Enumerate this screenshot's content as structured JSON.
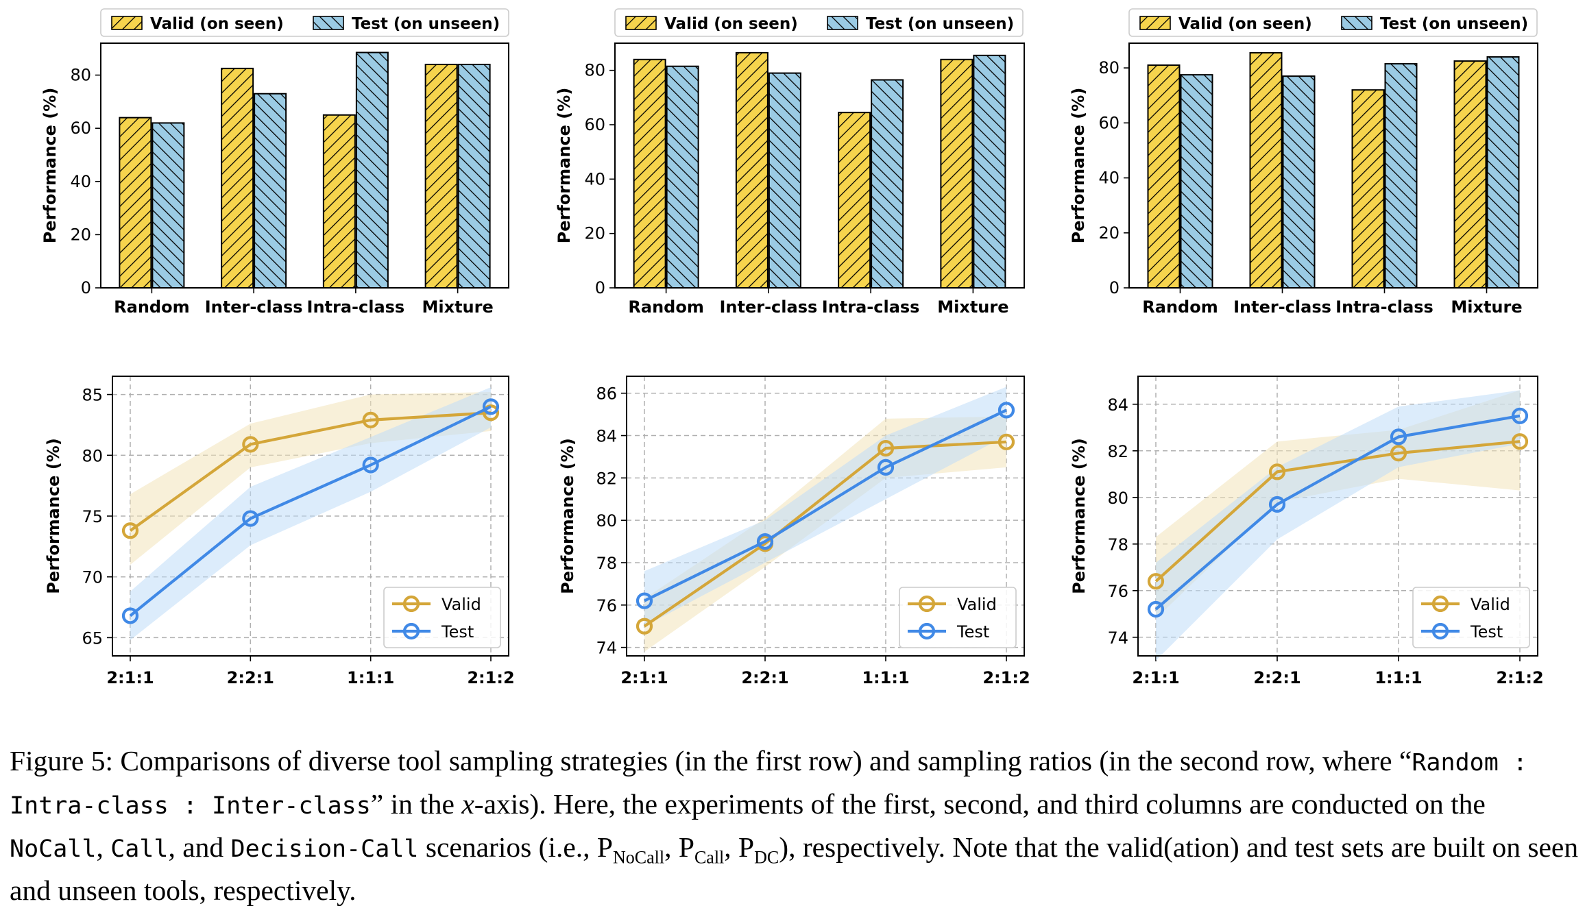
{
  "chart_data": [
    {
      "type": "bar",
      "ylabel": "Performance (%)",
      "ylim": [
        0,
        92
      ],
      "yticks": [
        "0",
        "20",
        "40",
        "60",
        "80"
      ],
      "categories": [
        "Random",
        "Inter-class",
        "Intra-class",
        "Mixture"
      ],
      "series": [
        {
          "name": "Valid (on seen)",
          "values": [
            64,
            82.5,
            65,
            84
          ]
        },
        {
          "name": "Test (on unseen)",
          "values": [
            62,
            73,
            88.5,
            84
          ]
        }
      ],
      "legend": "top"
    },
    {
      "type": "bar",
      "ylabel": "Performance (%)",
      "ylim": [
        0,
        90
      ],
      "yticks": [
        "0",
        "20",
        "40",
        "60",
        "80"
      ],
      "categories": [
        "Random",
        "Inter-class",
        "Intra-class",
        "Mixture"
      ],
      "series": [
        {
          "name": "Valid (on seen)",
          "values": [
            84,
            86.5,
            64.5,
            84
          ]
        },
        {
          "name": "Test (on unseen)",
          "values": [
            81.5,
            79,
            76.5,
            85.5
          ]
        }
      ],
      "legend": "top"
    },
    {
      "type": "bar",
      "ylabel": "Performance (%)",
      "ylim": [
        0,
        89
      ],
      "yticks": [
        "0",
        "20",
        "40",
        "60",
        "80"
      ],
      "categories": [
        "Random",
        "Inter-class",
        "Intra-class",
        "Mixture"
      ],
      "series": [
        {
          "name": "Valid (on seen)",
          "values": [
            81,
            85.5,
            72,
            82.5
          ]
        },
        {
          "name": "Test (on unseen)",
          "values": [
            77.5,
            77,
            81.5,
            84
          ]
        }
      ],
      "legend": "top"
    },
    {
      "type": "line",
      "ylabel": "Performance (%)",
      "ylim": [
        63.5,
        86.5
      ],
      "yticks": [
        "65",
        "70",
        "75",
        "80",
        "85"
      ],
      "categories": [
        "2:1:1",
        "2:2:1",
        "1:1:1",
        "2:1:2"
      ],
      "series": [
        {
          "name": "Valid",
          "values": [
            73.8,
            80.9,
            82.9,
            83.5
          ],
          "lower": [
            71.0,
            79.0,
            81.0,
            82.0
          ],
          "upper": [
            76.8,
            82.6,
            85.0,
            85.2
          ]
        },
        {
          "name": "Test",
          "values": [
            66.8,
            74.8,
            79.2,
            84.0
          ],
          "lower": [
            64.8,
            72.6,
            77.0,
            82.3
          ],
          "upper": [
            68.8,
            77.4,
            81.5,
            85.6
          ]
        }
      ],
      "legend": "lower right",
      "grid": true
    },
    {
      "type": "line",
      "ylabel": "Performance (%)",
      "ylim": [
        73.6,
        86.8
      ],
      "yticks": [
        "74",
        "76",
        "78",
        "80",
        "82",
        "84",
        "86"
      ],
      "categories": [
        "2:1:1",
        "2:2:1",
        "1:1:1",
        "2:1:2"
      ],
      "series": [
        {
          "name": "Valid",
          "values": [
            75.0,
            78.9,
            83.4,
            83.7
          ],
          "lower": [
            73.8,
            77.8,
            82.0,
            82.5
          ],
          "upper": [
            76.3,
            80.1,
            84.8,
            84.9
          ]
        },
        {
          "name": "Test",
          "values": [
            76.2,
            79.0,
            82.5,
            85.2
          ],
          "lower": [
            75.0,
            78.0,
            81.0,
            84.0
          ],
          "upper": [
            77.6,
            80.0,
            84.0,
            86.3
          ]
        }
      ],
      "legend": "lower right",
      "grid": true
    },
    {
      "type": "line",
      "ylabel": "Performance (%)",
      "ylim": [
        73.2,
        85.2
      ],
      "yticks": [
        "74",
        "76",
        "78",
        "80",
        "82",
        "84"
      ],
      "categories": [
        "2:1:1",
        "2:2:1",
        "1:1:1",
        "2:1:2"
      ],
      "series": [
        {
          "name": "Valid",
          "values": [
            76.4,
            81.1,
            81.9,
            82.4
          ],
          "lower": [
            74.8,
            79.8,
            80.8,
            80.3
          ],
          "upper": [
            78.3,
            82.4,
            82.9,
            84.6
          ]
        },
        {
          "name": "Test",
          "values": [
            75.2,
            79.7,
            82.6,
            83.5
          ],
          "lower": [
            73.0,
            78.2,
            81.3,
            82.3
          ],
          "upper": [
            77.2,
            81.3,
            83.9,
            84.6
          ]
        }
      ],
      "legend": "lower right",
      "grid": true
    }
  ],
  "colors": {
    "valid": "#f6d44d",
    "test": "#9bcbe4",
    "valid_line": "#d4a639",
    "test_line": "#4089e6"
  },
  "caption": {
    "p1": "Figure 5: Comparisons of diverse tool sampling strategies (in the first row) and sampling ratios (in the second row, where “",
    "m1": "Random : Intra-class : Inter-class",
    "p2": "” in the ",
    "xvar": "x",
    "p3": "-axis). Here, the experiments of the first, second, and third columns are conducted on the ",
    "m2": "NoCall",
    "p4": ", ",
    "m3": "Call",
    "p5": ", and ",
    "m4": "Decision-Call",
    "p6": " scenarios (i.e., P",
    "s1": "NoCall",
    "p7": ", P",
    "s2": "Call",
    "p8": ", P",
    "s3": "DC",
    "p9": "), respectively. Note that the valid(ation) and test sets are built on seen and unseen tools, respectively."
  }
}
